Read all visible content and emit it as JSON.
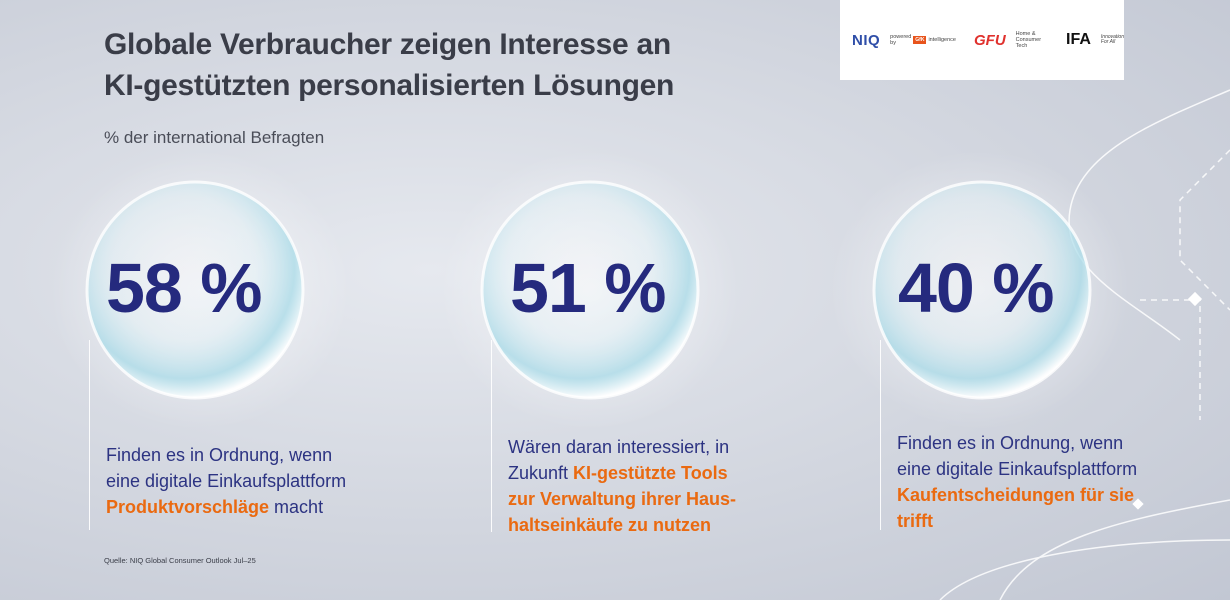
{
  "title": {
    "line1": "Globale Verbraucher zeigen Interesse an",
    "line2": "KI-gestützten personalisierten Lösungen"
  },
  "subtitle": "% der international Befragten",
  "logos": {
    "niq": "NIQ",
    "niq_powered": "powered by",
    "gfk": "GfK",
    "niq_intelligence": "intelligence",
    "gfu": "GFU",
    "gfu_line1": "Home &",
    "gfu_line2": "Consumer Tech",
    "ifa": "IFA",
    "ifa_line1": "Innovation",
    "ifa_line2": "For All"
  },
  "stats": [
    {
      "value": "58 %",
      "desc_line1": "Finden es in Ordnung, wenn",
      "desc_line2": "eine digitale Einkaufsplattform",
      "highlight": "Produktvorschläge",
      "desc_tail": " macht"
    },
    {
      "value": "51 %",
      "desc_line1": "Wären daran interessiert, in",
      "desc_pre": "Zukunft ",
      "highlight1": "KI-gestützte Tools",
      "highlight2": "zur Verwaltung ihrer Haus-",
      "highlight3": "haltseinkäufe zu nutzen"
    },
    {
      "value": "40 %",
      "desc_line1": "Finden es in Ordnung, wenn",
      "desc_line2": "eine digitale Einkaufsplattform",
      "highlight1": "Kaufentscheidungen für sie",
      "highlight2": "trifft"
    }
  ],
  "source": "Quelle: NIQ Global Consumer Outlook Jul–25",
  "colors": {
    "value": "#252a7e",
    "text": "#2c3382",
    "highlight": "#ea6a11",
    "title": "#3a3d48"
  }
}
